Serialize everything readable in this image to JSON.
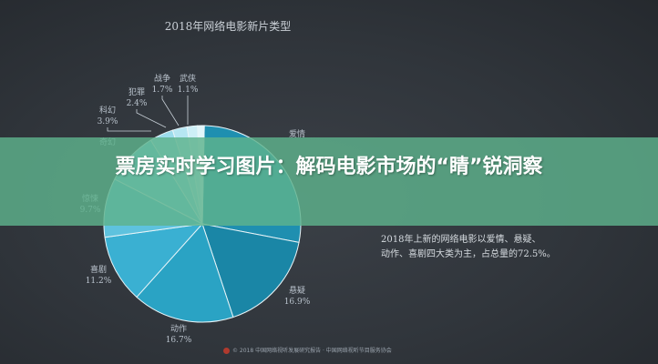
{
  "slide": {
    "title": "2018年网络电影新片类型",
    "side_text_line1": "2018年上新的网络电影以爱情、悬疑、",
    "side_text_line2": "动作、喜剧四大类为主，占总量的72.5%。",
    "footer": "© 2018 中国网络视听发展研究报告 · 中国网络视听节目服务协会"
  },
  "banner": {
    "headline": "票房实时学习图片：解码电影市场的“睛”锐洞察"
  },
  "chart_data": {
    "type": "pie",
    "title": "2018年网络电影新片类型",
    "slices": [
      {
        "name": "爱情",
        "label": "爱情",
        "value": null,
        "color": "#1f8fb0"
      },
      {
        "name": "悬疑",
        "label": "悬疑\n16.9%",
        "value": 16.9,
        "color": "#1a86a6"
      },
      {
        "name": "动作",
        "label": "动作\n16.7%",
        "value": 16.7,
        "color": "#2aa3c4"
      },
      {
        "name": "喜剧",
        "label": "喜剧\n11.2%",
        "value": 11.2,
        "color": "#3ab0d2"
      },
      {
        "name": "惊悚",
        "label": "惊悚\n9.7%",
        "value": 9.7,
        "color": "#5ec2de"
      },
      {
        "name": "奇幻",
        "label": "奇幻",
        "value": null,
        "color": "#7dd0e6"
      },
      {
        "name": "科幻",
        "label": "科幻\n3.9%",
        "value": 3.9,
        "color": "#9cdcec"
      },
      {
        "name": "犯罪",
        "label": "犯罪\n2.4%",
        "value": 2.4,
        "color": "#b6e6f2"
      },
      {
        "name": "战争",
        "label": "战争\n1.7%",
        "value": 1.7,
        "color": "#cdeff7"
      },
      {
        "name": "武侠",
        "label": "武侠\n1.1%",
        "value": 1.1,
        "color": "#e2f6fb"
      }
    ],
    "legend": "none"
  }
}
